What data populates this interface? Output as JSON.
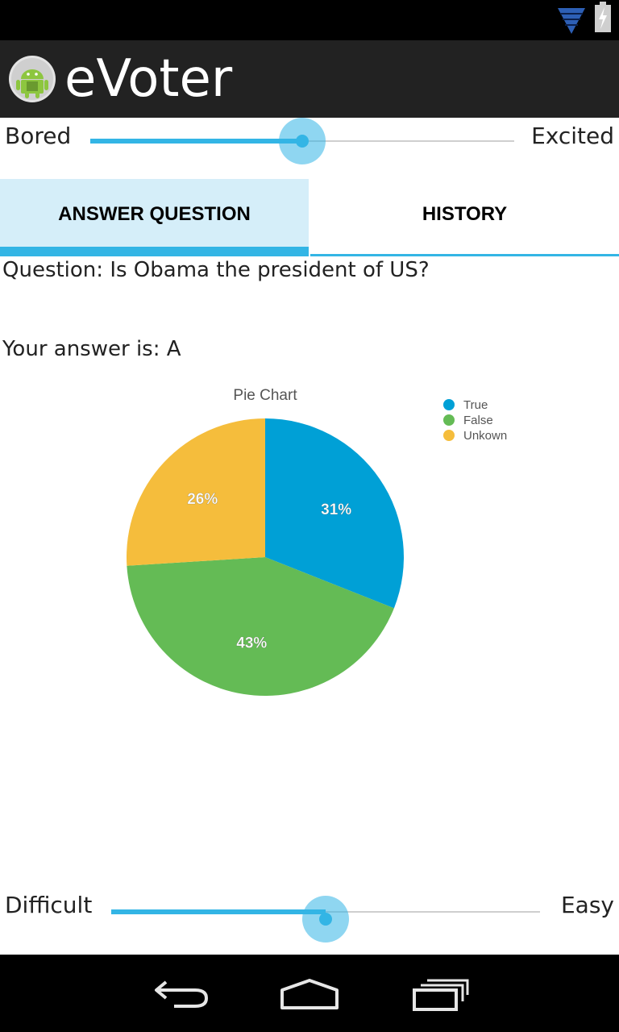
{
  "app": {
    "title": "eVoter"
  },
  "mood_slider": {
    "min_label": "Bored",
    "max_label": "Excited",
    "value_fraction": 0.5
  },
  "tabs": [
    {
      "label": "ANSWER QUESTION",
      "selected": true
    },
    {
      "label": "HISTORY",
      "selected": false
    }
  ],
  "question": {
    "text": "Question: Is Obama the president of US?"
  },
  "answer": {
    "text": "Your answer is: A"
  },
  "chart_data": {
    "type": "pie",
    "title": "Pie Chart",
    "slices": [
      {
        "label": "True",
        "value": 31,
        "display": "31%",
        "color": "#00a0d6"
      },
      {
        "label": "False",
        "value": 43,
        "display": "43%",
        "color": "#64bb55"
      },
      {
        "label": "Unkown",
        "value": 26,
        "display": "26%",
        "color": "#f5bd3c"
      }
    ],
    "legend": "top-right"
  },
  "difficulty_slider": {
    "min_label": "Difficult",
    "max_label": "Easy",
    "value_fraction": 0.5
  },
  "colors": {
    "accent": "#33b5e5",
    "tab_selected_bg": "#d5eef9",
    "action_bar": "#222222"
  },
  "icons": {
    "status": [
      "wifi-icon",
      "battery-charging-icon"
    ],
    "nav": [
      "back-icon",
      "home-icon",
      "recent-apps-icon"
    ],
    "app": "android-app-icon"
  }
}
